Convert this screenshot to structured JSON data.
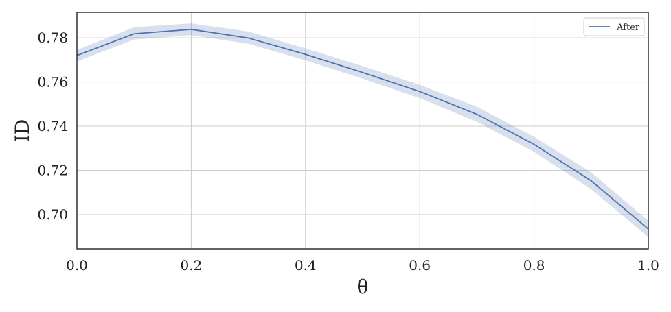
{
  "chart_data": {
    "type": "line",
    "title": "",
    "xlabel": "θ",
    "ylabel": "ID",
    "xlim": [
      0.0,
      1.0
    ],
    "ylim": [
      0.6845,
      0.7915
    ],
    "xticks": [
      0.0,
      0.2,
      0.4,
      0.6,
      0.8,
      1.0
    ],
    "xtick_labels": [
      "0.0",
      "0.2",
      "0.4",
      "0.6",
      "0.8",
      "1.0"
    ],
    "yticks": [
      0.7,
      0.72,
      0.74,
      0.76,
      0.78
    ],
    "ytick_labels": [
      "0.70",
      "0.72",
      "0.74",
      "0.76",
      "0.78"
    ],
    "grid": true,
    "legend_position": "top-right",
    "series": [
      {
        "name": "After",
        "color": "#4c72b0",
        "band_color": "#4c72b0",
        "x": [
          0.0,
          0.1,
          0.2,
          0.3,
          0.4,
          0.5,
          0.6,
          0.7,
          0.8,
          0.9,
          1.0
        ],
        "y": [
          0.772,
          0.7818,
          0.7838,
          0.7799,
          0.7725,
          0.7643,
          0.7557,
          0.7454,
          0.7318,
          0.7153,
          0.6935
        ],
        "lower": [
          0.7693,
          0.7792,
          0.7812,
          0.7773,
          0.7698,
          0.7615,
          0.7527,
          0.742,
          0.7284,
          0.7115,
          0.6898
        ],
        "upper": [
          0.7745,
          0.7848,
          0.7865,
          0.7828,
          0.7752,
          0.7672,
          0.7587,
          0.7488,
          0.7352,
          0.7191,
          0.6972
        ]
      }
    ]
  }
}
